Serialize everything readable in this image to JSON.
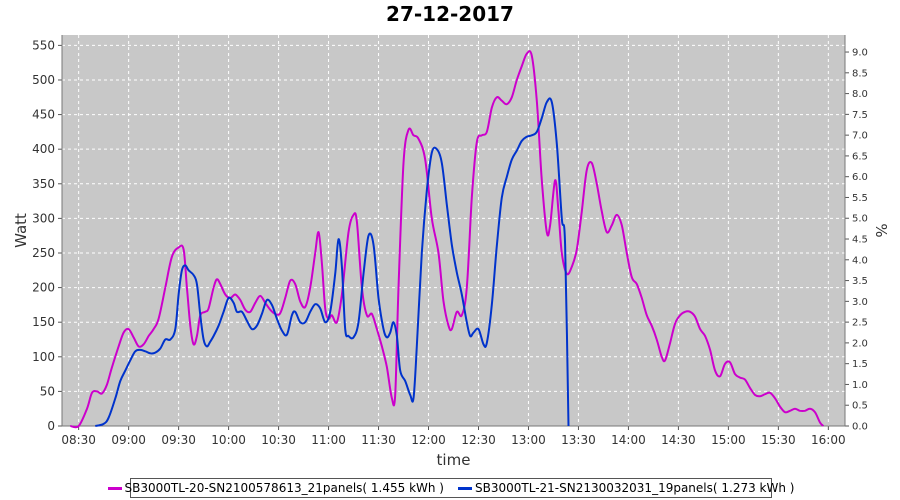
{
  "chart_data": {
    "type": "line",
    "title": "27-12-2017",
    "xlabel": "time",
    "ylabel": "Watt",
    "y2label": "%",
    "ylim": [
      0,
      565
    ],
    "y2lim": [
      0,
      9.41
    ],
    "grid": true,
    "legend": "bottom",
    "x_ticks": [
      "08:30",
      "09:00",
      "09:30",
      "10:00",
      "10:30",
      "11:00",
      "11:30",
      "12:00",
      "12:30",
      "13:00",
      "13:30",
      "14:00",
      "14:30",
      "15:00",
      "15:30",
      "16:00"
    ],
    "y_ticks": [
      0,
      50,
      100,
      150,
      200,
      250,
      300,
      350,
      400,
      450,
      500,
      550
    ],
    "y2_ticks": [
      "0.0",
      "0.5",
      "1.0",
      "1.5",
      "2.0",
      "2.5",
      "3.0",
      "3.5",
      "4.0",
      "4.5",
      "5.0",
      "5.5",
      "6.0",
      "6.5",
      "7.0",
      "7.5",
      "8.0",
      "8.5",
      "9.0"
    ],
    "series": [
      {
        "name": "SB3000TL-20-SN2100578613_21panels( 1.455 kWh )",
        "color": "#cc00cc",
        "points": [
          [
            "08:25",
            0
          ],
          [
            "08:30",
            0
          ],
          [
            "08:35",
            25
          ],
          [
            "08:38",
            48
          ],
          [
            "08:41",
            50
          ],
          [
            "08:44",
            47
          ],
          [
            "08:47",
            60
          ],
          [
            "08:50",
            85
          ],
          [
            "08:54",
            115
          ],
          [
            "08:57",
            135
          ],
          [
            "09:00",
            140
          ],
          [
            "09:03",
            128
          ],
          [
            "09:06",
            115
          ],
          [
            "09:09",
            118
          ],
          [
            "09:12",
            130
          ],
          [
            "09:15",
            140
          ],
          [
            "09:18",
            155
          ],
          [
            "09:22",
            200
          ],
          [
            "09:26",
            245
          ],
          [
            "09:30",
            258
          ],
          [
            "09:33",
            255
          ],
          [
            "09:35",
            200
          ],
          [
            "09:37",
            145
          ],
          [
            "09:39",
            118
          ],
          [
            "09:41",
            130
          ],
          [
            "09:43",
            160
          ],
          [
            "09:46",
            165
          ],
          [
            "09:48",
            170
          ],
          [
            "09:51",
            200
          ],
          [
            "09:53",
            212
          ],
          [
            "09:55",
            205
          ],
          [
            "09:58",
            190
          ],
          [
            "10:01",
            185
          ],
          [
            "10:04",
            190
          ],
          [
            "10:07",
            182
          ],
          [
            "10:10",
            168
          ],
          [
            "10:13",
            165
          ],
          [
            "10:16",
            178
          ],
          [
            "10:19",
            188
          ],
          [
            "10:22",
            178
          ],
          [
            "10:25",
            168
          ],
          [
            "10:28",
            162
          ],
          [
            "10:31",
            163
          ],
          [
            "10:34",
            185
          ],
          [
            "10:37",
            210
          ],
          [
            "10:40",
            205
          ],
          [
            "10:43",
            180
          ],
          [
            "10:46",
            172
          ],
          [
            "10:49",
            200
          ],
          [
            "10:52",
            250
          ],
          [
            "10:54",
            280
          ],
          [
            "10:56",
            235
          ],
          [
            "10:58",
            170
          ],
          [
            "11:00",
            155
          ],
          [
            "11:02",
            160
          ],
          [
            "11:05",
            150
          ],
          [
            "11:08",
            190
          ],
          [
            "11:12",
            280
          ],
          [
            "11:15",
            305
          ],
          [
            "11:17",
            295
          ],
          [
            "11:20",
            200
          ],
          [
            "11:23",
            160
          ],
          [
            "11:26",
            162
          ],
          [
            "11:29",
            140
          ],
          [
            "11:32",
            115
          ],
          [
            "11:35",
            85
          ],
          [
            "11:38",
            40
          ],
          [
            "11:40",
            45
          ],
          [
            "11:42",
            200
          ],
          [
            "11:45",
            380
          ],
          [
            "11:48",
            428
          ],
          [
            "11:51",
            420
          ],
          [
            "11:54",
            415
          ],
          [
            "11:58",
            385
          ],
          [
            "12:02",
            300
          ],
          [
            "12:06",
            250
          ],
          [
            "12:09",
            180
          ],
          [
            "12:12",
            145
          ],
          [
            "12:14",
            140
          ],
          [
            "12:17",
            165
          ],
          [
            "12:20",
            160
          ],
          [
            "12:23",
            200
          ],
          [
            "12:26",
            330
          ],
          [
            "12:29",
            410
          ],
          [
            "12:32",
            420
          ],
          [
            "12:35",
            425
          ],
          [
            "12:38",
            460
          ],
          [
            "12:41",
            475
          ],
          [
            "12:44",
            470
          ],
          [
            "12:47",
            465
          ],
          [
            "12:50",
            475
          ],
          [
            "12:53",
            500
          ],
          [
            "12:56",
            520
          ],
          [
            "12:59",
            538
          ],
          [
            "13:02",
            535
          ],
          [
            "13:05",
            470
          ],
          [
            "13:08",
            355
          ],
          [
            "13:11",
            280
          ],
          [
            "13:13",
            290
          ],
          [
            "13:16",
            355
          ],
          [
            "13:18",
            310
          ],
          [
            "13:20",
            250
          ],
          [
            "13:23",
            220
          ],
          [
            "13:26",
            230
          ],
          [
            "13:29",
            255
          ],
          [
            "13:32",
            310
          ],
          [
            "13:35",
            370
          ],
          [
            "13:38",
            380
          ],
          [
            "13:41",
            350
          ],
          [
            "13:44",
            310
          ],
          [
            "13:47",
            280
          ],
          [
            "13:50",
            290
          ],
          [
            "13:53",
            305
          ],
          [
            "13:56",
            290
          ],
          [
            "13:59",
            250
          ],
          [
            "14:02",
            215
          ],
          [
            "14:05",
            205
          ],
          [
            "14:08",
            185
          ],
          [
            "14:11",
            160
          ],
          [
            "14:14",
            145
          ],
          [
            "14:17",
            125
          ],
          [
            "14:20",
            100
          ],
          [
            "14:22",
            95
          ],
          [
            "14:25",
            120
          ],
          [
            "14:28",
            148
          ],
          [
            "14:31",
            160
          ],
          [
            "14:34",
            165
          ],
          [
            "14:37",
            165
          ],
          [
            "14:40",
            158
          ],
          [
            "14:43",
            140
          ],
          [
            "14:46",
            130
          ],
          [
            "14:49",
            110
          ],
          [
            "14:52",
            80
          ],
          [
            "14:55",
            72
          ],
          [
            "14:58",
            90
          ],
          [
            "15:01",
            92
          ],
          [
            "15:04",
            75
          ],
          [
            "15:07",
            70
          ],
          [
            "15:10",
            67
          ],
          [
            "15:13",
            55
          ],
          [
            "15:16",
            45
          ],
          [
            "15:19",
            43
          ],
          [
            "15:22",
            46
          ],
          [
            "15:25",
            48
          ],
          [
            "15:28",
            40
          ],
          [
            "15:31",
            28
          ],
          [
            "15:34",
            20
          ],
          [
            "15:37",
            22
          ],
          [
            "15:40",
            25
          ],
          [
            "15:43",
            22
          ],
          [
            "15:46",
            22
          ],
          [
            "15:49",
            25
          ],
          [
            "15:52",
            20
          ],
          [
            "15:55",
            5
          ],
          [
            "15:57",
            0
          ]
        ]
      },
      {
        "name": "SB3000TL-21-SN2130032031_19panels( 1.273 kWh )",
        "color": "#0033cc",
        "points": [
          [
            "08:40",
            0
          ],
          [
            "08:45",
            3
          ],
          [
            "08:48",
            12
          ],
          [
            "08:52",
            40
          ],
          [
            "08:55",
            65
          ],
          [
            "08:58",
            80
          ],
          [
            "09:01",
            95
          ],
          [
            "09:04",
            108
          ],
          [
            "09:07",
            110
          ],
          [
            "09:10",
            108
          ],
          [
            "09:13",
            105
          ],
          [
            "09:16",
            106
          ],
          [
            "09:19",
            112
          ],
          [
            "09:22",
            125
          ],
          [
            "09:25",
            125
          ],
          [
            "09:28",
            140
          ],
          [
            "09:30",
            190
          ],
          [
            "09:32",
            225
          ],
          [
            "09:34",
            232
          ],
          [
            "09:36",
            225
          ],
          [
            "09:39",
            218
          ],
          [
            "09:41",
            205
          ],
          [
            "09:43",
            160
          ],
          [
            "09:45",
            125
          ],
          [
            "09:47",
            115
          ],
          [
            "09:49",
            122
          ],
          [
            "09:51",
            130
          ],
          [
            "09:54",
            145
          ],
          [
            "09:57",
            165
          ],
          [
            "10:00",
            185
          ],
          [
            "10:03",
            178
          ],
          [
            "10:05",
            165
          ],
          [
            "10:08",
            165
          ],
          [
            "10:11",
            152
          ],
          [
            "10:14",
            140
          ],
          [
            "10:17",
            145
          ],
          [
            "10:20",
            162
          ],
          [
            "10:23",
            182
          ],
          [
            "10:26",
            175
          ],
          [
            "10:29",
            155
          ],
          [
            "10:32",
            138
          ],
          [
            "10:35",
            132
          ],
          [
            "10:38",
            160
          ],
          [
            "10:40",
            165
          ],
          [
            "10:43",
            150
          ],
          [
            "10:46",
            150
          ],
          [
            "10:49",
            165
          ],
          [
            "10:52",
            176
          ],
          [
            "10:55",
            170
          ],
          [
            "10:58",
            150
          ],
          [
            "11:01",
            165
          ],
          [
            "11:04",
            220
          ],
          [
            "11:06",
            270
          ],
          [
            "11:08",
            230
          ],
          [
            "11:10",
            140
          ],
          [
            "11:12",
            130
          ],
          [
            "11:15",
            128
          ],
          [
            "11:18",
            150
          ],
          [
            "11:21",
            220
          ],
          [
            "11:24",
            275
          ],
          [
            "11:27",
            262
          ],
          [
            "11:30",
            185
          ],
          [
            "11:33",
            140
          ],
          [
            "11:35",
            128
          ],
          [
            "11:37",
            135
          ],
          [
            "11:39",
            150
          ],
          [
            "11:41",
            130
          ],
          [
            "11:43",
            80
          ],
          [
            "11:46",
            65
          ],
          [
            "11:49",
            45
          ],
          [
            "11:51",
            40
          ],
          [
            "11:53",
            115
          ],
          [
            "11:56",
            250
          ],
          [
            "11:59",
            340
          ],
          [
            "12:02",
            395
          ],
          [
            "12:05",
            400
          ],
          [
            "12:08",
            380
          ],
          [
            "12:11",
            320
          ],
          [
            "12:14",
            262
          ],
          [
            "12:17",
            222
          ],
          [
            "12:20",
            190
          ],
          [
            "12:23",
            150
          ],
          [
            "12:25",
            130
          ],
          [
            "12:27",
            135
          ],
          [
            "12:30",
            140
          ],
          [
            "12:33",
            118
          ],
          [
            "12:35",
            120
          ],
          [
            "12:38",
            175
          ],
          [
            "12:41",
            260
          ],
          [
            "12:44",
            330
          ],
          [
            "12:47",
            360
          ],
          [
            "12:50",
            385
          ],
          [
            "12:53",
            398
          ],
          [
            "12:56",
            412
          ],
          [
            "12:59",
            418
          ],
          [
            "13:02",
            420
          ],
          [
            "13:05",
            425
          ],
          [
            "13:08",
            445
          ],
          [
            "13:11",
            468
          ],
          [
            "13:14",
            468
          ],
          [
            "13:17",
            408
          ],
          [
            "13:20",
            300
          ],
          [
            "13:22",
            262
          ],
          [
            "13:24,",
            0
          ]
        ]
      }
    ]
  }
}
